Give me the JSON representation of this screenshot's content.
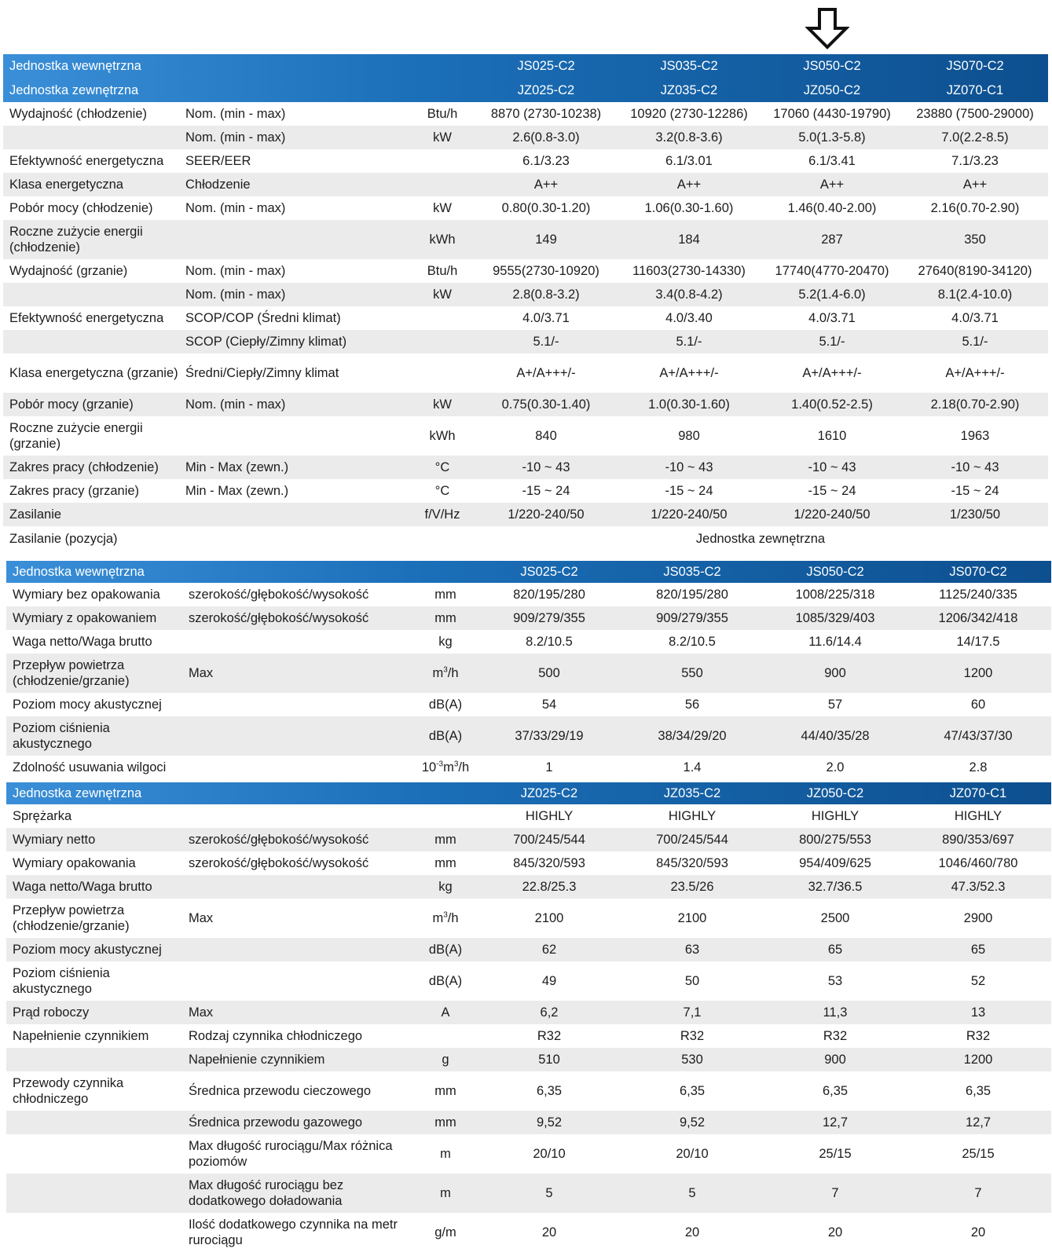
{
  "sections": [
    {
      "rows": [
        {
          "h": 30,
          "style": "hdr",
          "c": [
            "Jednostka wewnętrzna",
            "",
            "",
            "JS025-C2",
            "JS035-C2",
            "JS050-C2",
            "JS070-C2"
          ]
        },
        {
          "h": 31,
          "style": "hdr",
          "c": [
            "Jednostka zewnętrzna",
            "",
            "",
            "JZ025-C2",
            "JZ035-C2",
            "JZ050-C2",
            "JZ070-C1"
          ]
        },
        {
          "h": 30,
          "style": "",
          "c": [
            "Wydajność (chłodzenie)",
            "Nom. (min - max)",
            "Btu/h",
            "8870 (2730-10238)",
            "10920 (2730-12286)",
            "17060 (4430-19790)",
            "23880 (7500-29000)"
          ]
        },
        {
          "h": 30,
          "style": "alt",
          "c": [
            "",
            "Nom. (min - max)",
            "kW",
            "2.6(0.8-3.0)",
            "3.2(0.8-3.6)",
            "5.0(1.3-5.8)",
            "7.0(2.2-8.5)"
          ]
        },
        {
          "h": 30,
          "style": "",
          "c": [
            "Efektywność energetyczna",
            "SEER/EER",
            "",
            "6.1/3.23",
            "6.1/3.01",
            "6.1/3.41",
            "7.1/3.23"
          ]
        },
        {
          "h": 30,
          "style": "alt",
          "c": [
            "Klasa energetyczna",
            "Chłodzenie",
            "",
            "A++",
            "A++",
            "A++",
            "A++"
          ]
        },
        {
          "h": 30,
          "style": "",
          "c": [
            "Pobór mocy (chłodzenie)",
            "Nom. (min - max)",
            "kW",
            "0.80(0.30-1.20)",
            "1.06(0.30-1.60)",
            "1.46(0.40-2.00)",
            "2.16(0.70-2.90)"
          ]
        },
        {
          "h": 50,
          "style": "alt",
          "c": [
            "Roczne zużycie energii (chłodzenie)",
            "",
            "kWh",
            "149",
            "184",
            "287",
            "350"
          ]
        },
        {
          "h": 30,
          "style": "",
          "c": [
            "Wydajność (grzanie)",
            "Nom. (min - max)",
            "Btu/h",
            "9555(2730-10920)",
            "11603(2730-14330)",
            "17740(4770-20470)",
            "27640(8190-34120)"
          ]
        },
        {
          "h": 30,
          "style": "alt",
          "c": [
            "",
            "Nom. (min - max)",
            "kW",
            "2.8(0.8-3.2)",
            "3.4(0.8-4.2)",
            "5.2(1.4-6.0)",
            "8.1(2.4-10.0)"
          ]
        },
        {
          "h": 30,
          "style": "",
          "c": [
            "Efektywność energetyczna",
            "SCOP/COP (Średni klimat)",
            "",
            "4.0/3.71",
            "4.0/3.40",
            "4.0/3.71",
            "4.0/3.71"
          ]
        },
        {
          "h": 30,
          "style": "alt",
          "c": [
            "",
            "SCOP (Ciepły/Zimny klimat)",
            "",
            "5.1/-",
            "5.1/-",
            "5.1/-",
            "5.1/-"
          ]
        },
        {
          "h": 50,
          "style": "",
          "c": [
            "Klasa energetyczna (grzanie)",
            "Średni/Ciepły/Zimny klimat",
            "",
            "A+/A+++/-",
            "A+/A+++/-",
            "A+/A+++/-",
            "A+/A+++/-"
          ]
        },
        {
          "h": 30,
          "style": "alt",
          "c": [
            "Pobór mocy (grzanie)",
            "Nom. (min - max)",
            "kW",
            "0.75(0.30-1.40)",
            "1.0(0.30-1.60)",
            "1.40(0.52-2.5)",
            "2.18(0.70-2.90)"
          ]
        },
        {
          "h": 50,
          "style": "",
          "c": [
            "Roczne zużycie energii (grzanie)",
            "",
            "kWh",
            "840",
            "980",
            "1610",
            "1963"
          ]
        },
        {
          "h": 30,
          "style": "alt",
          "c": [
            "Zakres pracy (chłodzenie)",
            "Min - Max (zewn.)",
            "°C",
            "-10 ~ 43",
            "-10 ~ 43",
            "-10 ~ 43",
            "-10 ~ 43"
          ]
        },
        {
          "h": 30,
          "style": "",
          "c": [
            "Zakres pracy (grzanie)",
            "Min - Max (zewn.)",
            "°C",
            "-15 ~ 24",
            "-15 ~ 24",
            "-15 ~ 24",
            "-15 ~ 24"
          ]
        },
        {
          "h": 30,
          "style": "alt",
          "c": [
            "Zasilanie",
            "",
            "f/V/Hz",
            "1/220-240/50",
            "1/220-240/50",
            "1/220-240/50",
            "1/230/50"
          ]
        },
        {
          "h": 31,
          "style": "",
          "span": true,
          "c": [
            "Zasilanie (pozycja)",
            "",
            "",
            "Jednostka zewnętrzna"
          ]
        }
      ]
    },
    {
      "rows": [
        {
          "h": 28,
          "style": "hdr",
          "c": [
            "Jednostka wewnętrzna",
            "",
            "",
            "JS025-C2",
            "JS035-C2",
            "JS050-C2",
            "JS070-C2"
          ]
        },
        {
          "h": 30,
          "style": "",
          "c": [
            "Wymiary bez opakowania",
            "szerokość/głębokość/wysokość",
            "mm",
            "820/195/280",
            "820/195/280",
            "1008/225/318",
            "1125/240/335"
          ]
        },
        {
          "h": 30,
          "style": "alt",
          "c": [
            "Wymiary z opakowaniem",
            "szerokość/głębokość/wysokość",
            "mm",
            "909/279/355",
            "909/279/355",
            "1085/329/403",
            "1206/342/418"
          ]
        },
        {
          "h": 30,
          "style": "",
          "c": [
            "Waga netto/Waga brutto",
            "",
            "kg",
            "8.2/10.5",
            "8.2/10.5",
            "11.6/14.4",
            "14/17.5"
          ]
        },
        {
          "h": 50,
          "style": "alt",
          "c": [
            "Przepływ powietrza (chłodzenie/grzanie)",
            "Max",
            "m3/h",
            "500",
            "550",
            "900",
            "1200"
          ]
        },
        {
          "h": 30,
          "style": "",
          "c": [
            "Poziom mocy akustycznej",
            "",
            "dB(A)",
            "54",
            "56",
            "57",
            "60"
          ]
        },
        {
          "h": 50,
          "style": "alt",
          "c": [
            "Poziom ciśnienia akustycznego",
            "",
            "dB(A)",
            "37/33/29/19",
            "38/34/29/20",
            "44/40/35/28",
            "47/43/37/30"
          ]
        },
        {
          "h": 30,
          "style": "",
          "c": [
            "Zdolność usuwania wilgoci",
            "",
            "10-3m3/h",
            "1",
            "1.4",
            "2.0",
            "2.8"
          ]
        }
      ]
    },
    {
      "rows": [
        {
          "h": 28,
          "style": "hdr",
          "c": [
            "Jednostka zewnętrzna",
            "",
            "",
            "JZ025-C2",
            "JZ035-C2",
            "JZ050-C2",
            "JZ070-C1"
          ]
        },
        {
          "h": 30,
          "style": "",
          "c": [
            "Sprężarka",
            "",
            "",
            "HIGHLY",
            "HIGHLY",
            "HIGHLY",
            "HIGHLY"
          ]
        },
        {
          "h": 30,
          "style": "alt",
          "c": [
            "Wymiary netto",
            "szerokość/głębokość/wysokość",
            "mm",
            "700/245/544",
            "700/245/544",
            "800/275/553",
            "890/353/697"
          ]
        },
        {
          "h": 30,
          "style": "",
          "c": [
            "Wymiary opakowania",
            "szerokość/głębokość/wysokość",
            "mm",
            "845/320/593",
            "845/320/593",
            "954/409/625",
            "1046/460/780"
          ]
        },
        {
          "h": 30,
          "style": "alt",
          "c": [
            "Waga netto/Waga brutto",
            "",
            "kg",
            "22.8/25.3",
            "23.5/26",
            "32.7/36.5",
            "47.3/52.3"
          ]
        },
        {
          "h": 50,
          "style": "",
          "c": [
            "Przepływ powietrza (chłodzenie/grzanie)",
            "Max",
            "m3/h",
            "2100",
            "2100",
            "2500",
            "2900"
          ]
        },
        {
          "h": 30,
          "style": "alt",
          "c": [
            "Poziom mocy akustycznej",
            "",
            "dB(A)",
            "62",
            "63",
            "65",
            "65"
          ]
        },
        {
          "h": 50,
          "style": "",
          "c": [
            "Poziom ciśnienia akustycznego",
            "",
            "dB(A)",
            "49",
            "50",
            "53",
            "52"
          ]
        },
        {
          "h": 30,
          "style": "alt",
          "c": [
            "Prąd roboczy",
            "Max",
            "A",
            "6,2",
            "7,1",
            "11,3",
            "13"
          ]
        },
        {
          "h": 30,
          "style": "",
          "c": [
            "Napełnienie czynnikiem",
            "Rodzaj czynnika chłodniczego",
            "",
            "R32",
            "R32",
            "R32",
            "R32"
          ]
        },
        {
          "h": 30,
          "style": "alt",
          "c": [
            "",
            "Napełnienie czynnikiem",
            "g",
            "510",
            "530",
            "900",
            "1200"
          ]
        },
        {
          "h": 50,
          "style": "",
          "c": [
            "Przewody czynnika chłodniczego",
            "Średnica przewodu cieczowego",
            "mm",
            "6,35",
            "6,35",
            "6,35",
            "6,35"
          ]
        },
        {
          "h": 30,
          "style": "alt",
          "c": [
            "",
            "Średnica przewodu gazowego",
            "mm",
            "9,52",
            "9,52",
            "12,7",
            "12,7"
          ]
        },
        {
          "h": 50,
          "style": "",
          "c": [
            "",
            "Max długość rurociągu/Max różnica poziomów",
            "m",
            "20/10",
            "20/10",
            "25/15",
            "25/15"
          ]
        },
        {
          "h": 50,
          "style": "alt",
          "c": [
            "",
            "Max długość rurociągu bez dodatkowego doładowania",
            "m",
            "5",
            "5",
            "7",
            "7"
          ]
        },
        {
          "h": 50,
          "style": "",
          "c": [
            "",
            "Ilość dodatkowego czynnika na metr rurociągu",
            "g/m",
            "20",
            "20",
            "20",
            "20"
          ]
        }
      ]
    }
  ],
  "icons": {
    "arrow": "down-arrow-icon"
  }
}
